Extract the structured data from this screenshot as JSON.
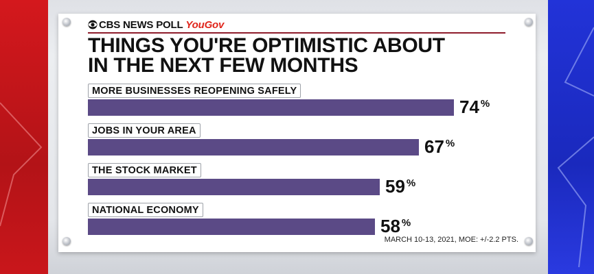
{
  "brand": {
    "network": "CBS NEWS POLL",
    "partner": "YouGov",
    "network_color": "#111111",
    "partner_color": "#e0251b",
    "rule_color": "#8e1b2a"
  },
  "icons": [
    "cbs-eye-icon"
  ],
  "chart_data": {
    "type": "bar",
    "orientation": "horizontal",
    "title_lines": [
      "THINGS YOU'RE OPTIMISTIC ABOUT",
      "IN THE NEXT FEW MONTHS"
    ],
    "categories": [
      "MORE BUSINESSES REOPENING SAFELY",
      "JOBS IN YOUR AREA",
      "THE STOCK MARKET",
      "NATIONAL ECONOMY"
    ],
    "values": [
      74,
      67,
      59,
      58
    ],
    "value_suffix": "%",
    "xlim": [
      0,
      100
    ],
    "bar_color": "#5b4a86",
    "grid": false,
    "legend": "none"
  },
  "footnote": "MARCH 10-13, 2021, MOE: +/-2.2 PTS."
}
